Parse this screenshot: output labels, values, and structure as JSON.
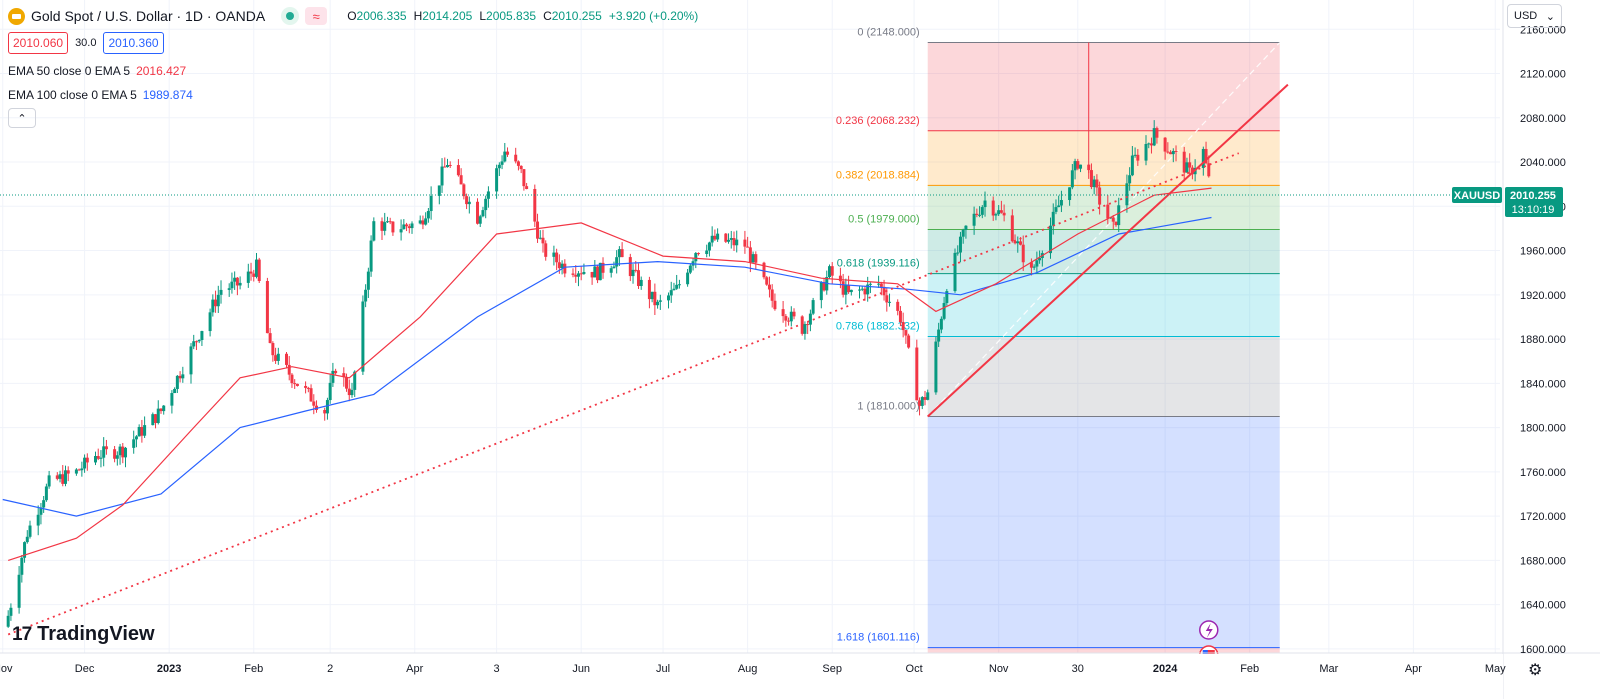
{
  "header": {
    "title": "Gold Spot / U.S. Dollar · 1D · OANDA",
    "wave_icon": "≈",
    "ohlc": [
      {
        "k": "O",
        "v": "2006.335"
      },
      {
        "k": "H",
        "v": "2014.205"
      },
      {
        "k": "L",
        "v": "2005.835"
      },
      {
        "k": "C",
        "v": "2010.255"
      },
      {
        "k": "",
        "v": "+3.920 (+0.20%)"
      }
    ],
    "sell": "2010.060",
    "spread": "30.0",
    "buy": "2010.360",
    "collapse_icon": "⌃"
  },
  "indicators": [
    {
      "label": "EMA 50 close 0 EMA 5",
      "value": "2016.427",
      "color": "#f23645"
    },
    {
      "label": "EMA 100 close 0 EMA 5",
      "value": "1989.874",
      "color": "#2962ff"
    }
  ],
  "currency": "USD",
  "currency_icon": "⌄",
  "logo_text": "TradingView",
  "logo_mark": "17",
  "settings_icon": "⚙",
  "chart_data": {
    "type": "candlestick",
    "symbol": "XAUUSD",
    "last_price": "2010.255",
    "countdown": "13:10:19",
    "ylim": [
      1580,
      2172
    ],
    "y_ticks": [
      "2160.000",
      "2120.000",
      "2080.000",
      "2040.000",
      "2000.000",
      "1960.000",
      "1920.000",
      "1880.000",
      "1840.000",
      "1800.000",
      "1760.000",
      "1720.000",
      "1680.000",
      "1640.000",
      "1600.000"
    ],
    "x_ticks": [
      "Nov",
      "Dec",
      "2023",
      "Feb",
      "2",
      "Apr",
      "3",
      "Jun",
      "Jul",
      "Aug",
      "Sep",
      "Oct",
      "Nov",
      "30",
      "2024",
      "Feb",
      "Mar",
      "Apr",
      "May"
    ],
    "x_tick_dates": [
      "2022-11-01",
      "2022-12-01",
      "2023-01-01",
      "2023-02-01",
      "2023-03-01",
      "2023-04-01",
      "2023-05-01",
      "2023-06-01",
      "2023-07-01",
      "2023-08-01",
      "2023-09-01",
      "2023-10-01",
      "2023-11-01",
      "2023-11-30",
      "2024-01-01",
      "2024-02-01",
      "2024-03-01",
      "2024-04-01",
      "2024-05-01"
    ],
    "close_path": [
      [
        "2022-11-03",
        1630
      ],
      [
        "2022-11-10",
        1705
      ],
      [
        "2022-11-18",
        1750
      ],
      [
        "2022-11-28",
        1760
      ],
      [
        "2022-12-05",
        1775
      ],
      [
        "2022-12-15",
        1780
      ],
      [
        "2022-12-29",
        1815
      ],
      [
        "2023-01-10",
        1875
      ],
      [
        "2023-01-20",
        1925
      ],
      [
        "2023-01-27",
        1930
      ],
      [
        "2023-02-02",
        1945
      ],
      [
        "2023-02-07",
        1870
      ],
      [
        "2023-02-17",
        1840
      ],
      [
        "2023-02-27",
        1815
      ],
      [
        "2023-03-03",
        1855
      ],
      [
        "2023-03-09",
        1830
      ],
      [
        "2023-03-17",
        1985
      ],
      [
        "2023-03-24",
        1980
      ],
      [
        "2023-04-03",
        1985
      ],
      [
        "2023-04-13",
        2040
      ],
      [
        "2023-04-24",
        1990
      ],
      [
        "2023-05-04",
        2050
      ],
      [
        "2023-05-10",
        2030
      ],
      [
        "2023-05-18",
        1960
      ],
      [
        "2023-05-26",
        1945
      ],
      [
        "2023-06-07",
        1940
      ],
      [
        "2023-06-15",
        1955
      ],
      [
        "2023-06-29",
        1910
      ],
      [
        "2023-07-06",
        1925
      ],
      [
        "2023-07-13",
        1960
      ],
      [
        "2023-07-20",
        1970
      ],
      [
        "2023-07-31",
        1965
      ],
      [
        "2023-08-10",
        1915
      ],
      [
        "2023-08-21",
        1890
      ],
      [
        "2023-08-31",
        1940
      ],
      [
        "2023-09-07",
        1920
      ],
      [
        "2023-09-18",
        1930
      ],
      [
        "2023-09-26",
        1900
      ],
      [
        "2023-10-03",
        1820
      ],
      [
        "2023-10-06",
        1832
      ],
      [
        "2023-10-13",
        1930
      ],
      [
        "2023-10-20",
        1980
      ],
      [
        "2023-10-27",
        2005
      ],
      [
        "2023-11-03",
        1990
      ],
      [
        "2023-11-13",
        1940
      ],
      [
        "2023-11-22",
        1995
      ],
      [
        "2023-11-30",
        2040
      ],
      [
        "2023-12-04",
        2030
      ],
      [
        "2023-12-08",
        2005
      ],
      [
        "2023-12-13",
        1980
      ],
      [
        "2023-12-20",
        2040
      ],
      [
        "2023-12-28",
        2065
      ],
      [
        "2024-01-05",
        2045
      ],
      [
        "2024-01-10",
        2030
      ],
      [
        "2024-01-15",
        2050
      ],
      [
        "2024-01-18",
        2010
      ]
    ],
    "ema50": [
      [
        "2022-11-03",
        1680
      ],
      [
        "2022-11-28",
        1700
      ],
      [
        "2022-12-15",
        1730
      ],
      [
        "2023-01-10",
        1800
      ],
      [
        "2023-01-27",
        1845
      ],
      [
        "2023-02-15",
        1855
      ],
      [
        "2023-03-08",
        1845
      ],
      [
        "2023-04-03",
        1900
      ],
      [
        "2023-05-01",
        1975
      ],
      [
        "2023-06-01",
        1985
      ],
      [
        "2023-07-01",
        1955
      ],
      [
        "2023-07-31",
        1950
      ],
      [
        "2023-08-28",
        1935
      ],
      [
        "2023-09-25",
        1930
      ],
      [
        "2023-10-09",
        1905
      ],
      [
        "2023-10-31",
        1930
      ],
      [
        "2023-11-30",
        1975
      ],
      [
        "2023-12-28",
        2010
      ],
      [
        "2024-01-18",
        2016.427
      ]
    ],
    "ema100": [
      [
        "2022-11-01",
        1735
      ],
      [
        "2022-11-28",
        1720
      ],
      [
        "2022-12-29",
        1740
      ],
      [
        "2023-01-27",
        1800
      ],
      [
        "2023-02-20",
        1815
      ],
      [
        "2023-03-17",
        1830
      ],
      [
        "2023-04-24",
        1900
      ],
      [
        "2023-05-26",
        1945
      ],
      [
        "2023-06-29",
        1950
      ],
      [
        "2023-07-31",
        1945
      ],
      [
        "2023-08-31",
        1930
      ],
      [
        "2023-09-29",
        1925
      ],
      [
        "2023-10-18",
        1920
      ],
      [
        "2023-11-15",
        1940
      ],
      [
        "2023-12-15",
        1975
      ],
      [
        "2024-01-18",
        1989.874
      ]
    ],
    "trendline_dotted": {
      "from": [
        "2022-11-03",
        1613
      ],
      "to": [
        "2024-01-28",
        2048
      ]
    },
    "trendline_solid": {
      "from": [
        "2023-10-06",
        1810
      ],
      "to": [
        "2024-02-15",
        2110
      ]
    },
    "fib": {
      "start": "2023-10-06",
      "end": "2024-02-12",
      "levels": [
        {
          "label": "0 (2148.000)",
          "price": 2148.0,
          "color": "#787b86"
        },
        {
          "label": "0.236 (2068.232)",
          "price": 2068.232,
          "color": "#f23645"
        },
        {
          "label": "0.382 (2018.884)",
          "price": 2018.884,
          "color": "#ff9800"
        },
        {
          "label": "0.5 (1979.000)",
          "price": 1979.0,
          "color": "#4caf50"
        },
        {
          "label": "0.618 (1939.116)",
          "price": 1939.116,
          "color": "#089981"
        },
        {
          "label": "0.786 (1882.332)",
          "price": 1882.332,
          "color": "#00bcd4"
        },
        {
          "label": "1 (1810.000)",
          "price": 1810.0,
          "color": "#787b86"
        },
        {
          "label": "1.618 (1601.116)",
          "price": 1601.116,
          "color": "#2962ff"
        }
      ],
      "zone_fills": [
        "#f2364533",
        "#ff980033",
        "#4caf5033",
        "#08998133",
        "#00bcd433",
        "#787b8633",
        "#2962ff33",
        "#f2364533"
      ]
    },
    "colors": {
      "up": "#089981",
      "down": "#f23645",
      "ema50": "#f23645",
      "ema100": "#2962ff",
      "last": "#089981",
      "trend": "#f23645"
    }
  }
}
